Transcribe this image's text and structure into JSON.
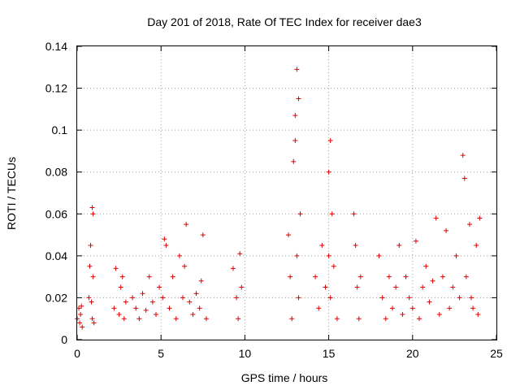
{
  "chart_data": {
    "type": "scatter",
    "title": "Day 201 of 2018, Rate Of TEC Index for receiver dae3",
    "xlabel": "GPS time / hours",
    "ylabel": "ROTI / TECUs",
    "xlim": [
      0,
      25
    ],
    "ylim": [
      0,
      0.14
    ],
    "x_ticks": [
      "0",
      "5",
      "10",
      "15",
      "20",
      "25"
    ],
    "y_ticks": [
      "0",
      "0.02",
      "0.04",
      "0.06",
      "0.08",
      "0.1",
      "0.12",
      "0.14"
    ],
    "grid": true,
    "marker": "+",
    "color": "#e00000",
    "series": [
      {
        "name": "ROTI",
        "x": [
          0.0,
          0.1,
          0.15,
          0.2,
          0.25,
          0.3,
          0.7,
          0.75,
          0.8,
          0.85,
          0.9,
          0.95,
          1.0,
          0.9,
          0.95,
          2.2,
          2.3,
          2.5,
          2.6,
          2.7,
          2.8,
          2.9,
          3.3,
          3.5,
          3.7,
          3.9,
          4.1,
          4.3,
          4.5,
          4.7,
          4.9,
          5.1,
          5.3,
          5.5,
          5.7,
          5.9,
          6.1,
          6.3,
          6.5,
          6.7,
          6.9,
          7.1,
          7.3,
          7.5,
          7.7,
          5.2,
          6.4,
          7.4,
          9.3,
          9.5,
          9.6,
          9.7,
          9.8,
          12.6,
          12.7,
          12.8,
          12.9,
          13.0,
          13.1,
          13.2,
          13.3,
          13.0,
          13.1,
          13.2,
          14.2,
          14.4,
          14.6,
          14.8,
          15.0,
          15.1,
          15.2,
          15.3,
          15.5,
          15.0,
          15.1,
          16.5,
          16.6,
          16.7,
          16.8,
          16.9,
          18.0,
          18.2,
          18.4,
          18.6,
          18.8,
          19.0,
          19.2,
          19.4,
          19.6,
          19.8,
          20.0,
          20.2,
          20.4,
          20.6,
          20.8,
          21.0,
          21.2,
          21.4,
          21.6,
          21.8,
          22.0,
          22.2,
          22.4,
          22.6,
          22.8,
          23.0,
          23.2,
          23.4,
          23.6,
          23.8,
          24.0,
          23.1,
          23.5,
          23.9
        ],
        "y": [
          0.01,
          0.015,
          0.008,
          0.012,
          0.016,
          0.006,
          0.02,
          0.035,
          0.045,
          0.018,
          0.01,
          0.03,
          0.008,
          0.063,
          0.06,
          0.015,
          0.034,
          0.012,
          0.025,
          0.03,
          0.01,
          0.018,
          0.02,
          0.015,
          0.01,
          0.022,
          0.014,
          0.03,
          0.018,
          0.012,
          0.025,
          0.02,
          0.045,
          0.015,
          0.03,
          0.01,
          0.04,
          0.02,
          0.055,
          0.018,
          0.012,
          0.022,
          0.015,
          0.05,
          0.01,
          0.048,
          0.035,
          0.028,
          0.034,
          0.02,
          0.01,
          0.041,
          0.025,
          0.05,
          0.03,
          0.01,
          0.085,
          0.107,
          0.129,
          0.115,
          0.06,
          0.095,
          0.04,
          0.02,
          0.03,
          0.015,
          0.045,
          0.025,
          0.08,
          0.095,
          0.06,
          0.035,
          0.01,
          0.04,
          0.02,
          0.06,
          0.045,
          0.025,
          0.01,
          0.03,
          0.04,
          0.02,
          0.01,
          0.03,
          0.015,
          0.025,
          0.045,
          0.012,
          0.03,
          0.02,
          0.015,
          0.047,
          0.01,
          0.025,
          0.035,
          0.018,
          0.028,
          0.058,
          0.012,
          0.03,
          0.052,
          0.015,
          0.025,
          0.04,
          0.02,
          0.088,
          0.03,
          0.055,
          0.015,
          0.045,
          0.058,
          0.077,
          0.02,
          0.012
        ]
      }
    ]
  }
}
